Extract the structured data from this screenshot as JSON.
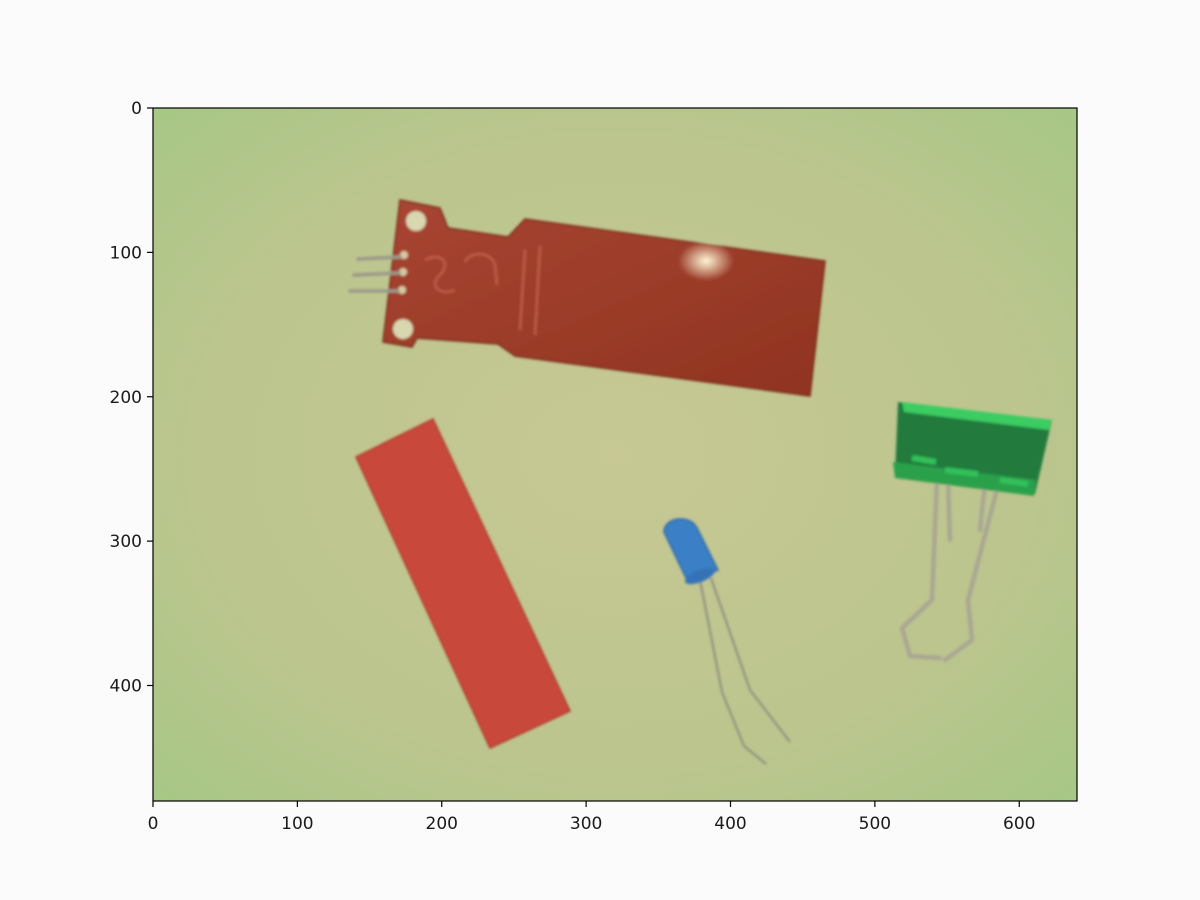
{
  "figure": {
    "type": "image-display",
    "background_color": "#fbfbfb",
    "image": {
      "description_note": "",
      "scene": {
        "surface_color": "#b9c58e",
        "objects": [
          {
            "name": "water-level-sensor-board",
            "color": "#9b3a25",
            "pins_color": "#9a9a88",
            "marking_text": "S"
          },
          {
            "name": "red-heat-shrink-strip",
            "color": "#c8493a"
          },
          {
            "name": "blue-led",
            "color": "#3b7fc6",
            "leg_color": "#8f927e"
          },
          {
            "name": "green-binder-clip",
            "color": "#217a3e",
            "edge_color": "#33c05a",
            "handle_color": "#a9a792"
          }
        ]
      }
    },
    "axes": {
      "x_range": [
        0,
        640
      ],
      "y_range": [
        480,
        0
      ],
      "x_ticks": [
        {
          "value": 0,
          "label": "0"
        },
        {
          "value": 100,
          "label": "100"
        },
        {
          "value": 200,
          "label": "200"
        },
        {
          "value": 300,
          "label": "300"
        },
        {
          "value": 400,
          "label": "400"
        },
        {
          "value": 500,
          "label": "500"
        },
        {
          "value": 600,
          "label": "600"
        }
      ],
      "y_ticks": [
        {
          "value": 0,
          "label": "0"
        },
        {
          "value": 100,
          "label": "100"
        },
        {
          "value": 200,
          "label": "200"
        },
        {
          "value": 300,
          "label": "300"
        },
        {
          "value": 400,
          "label": "400"
        }
      ]
    }
  }
}
